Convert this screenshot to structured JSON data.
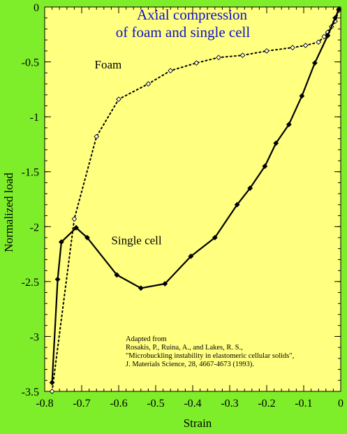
{
  "colors": {
    "page_background": "#7fee2a",
    "plot_background": "#ffff80",
    "title_color": "#1010c8",
    "series_color": "#000000"
  },
  "chart_data": {
    "type": "line",
    "title_lines": [
      "Axial compression",
      "of foam and single cell"
    ],
    "xlabel": "Strain",
    "ylabel": "Normalized load",
    "xlim": [
      -0.8,
      0
    ],
    "ylim": [
      -3.5,
      0
    ],
    "x_ticks": [
      "-0.8",
      "-0.7",
      "-0.6",
      "-0.5",
      "-0.4",
      "-0.3",
      "-0.2",
      "-0.1",
      "0"
    ],
    "y_ticks": [
      "0",
      "-0.5",
      "-1",
      "-1.5",
      "-2",
      "-2.5",
      "-3",
      "-3.5"
    ],
    "grid": false,
    "series": [
      {
        "name": "Foam",
        "style": "dotted",
        "marker": "open-diamond",
        "points": [
          [
            -0.78,
            -3.5
          ],
          [
            -0.72,
            -1.93
          ],
          [
            -0.66,
            -1.18
          ],
          [
            -0.6,
            -0.84
          ],
          [
            -0.52,
            -0.7
          ],
          [
            -0.46,
            -0.58
          ],
          [
            -0.39,
            -0.51
          ],
          [
            -0.33,
            -0.46
          ],
          [
            -0.265,
            -0.44
          ],
          [
            -0.2,
            -0.4
          ],
          [
            -0.13,
            -0.37
          ],
          [
            -0.095,
            -0.35
          ],
          [
            -0.06,
            -0.32
          ],
          [
            -0.045,
            -0.27
          ],
          [
            -0.035,
            -0.23
          ],
          [
            -0.025,
            -0.18
          ],
          [
            -0.015,
            -0.13
          ],
          [
            -0.005,
            -0.03
          ]
        ]
      },
      {
        "name": "Single cell",
        "style": "solid",
        "marker": "filled-diamond",
        "points": [
          [
            -0.78,
            -3.42
          ],
          [
            -0.765,
            -2.48
          ],
          [
            -0.755,
            -2.14
          ],
          [
            -0.715,
            -2.01
          ],
          [
            -0.685,
            -2.1
          ],
          [
            -0.605,
            -2.44
          ],
          [
            -0.54,
            -2.56
          ],
          [
            -0.475,
            -2.52
          ],
          [
            -0.405,
            -2.27
          ],
          [
            -0.34,
            -2.1
          ],
          [
            -0.28,
            -1.8
          ],
          [
            -0.245,
            -1.65
          ],
          [
            -0.205,
            -1.45
          ],
          [
            -0.175,
            -1.24
          ],
          [
            -0.14,
            -1.07
          ],
          [
            -0.105,
            -0.81
          ],
          [
            -0.07,
            -0.51
          ],
          [
            -0.035,
            -0.26
          ],
          [
            -0.015,
            -0.1
          ],
          [
            -0.005,
            -0.02
          ]
        ]
      }
    ],
    "annotations": [
      {
        "text": "Foam",
        "x": -0.665,
        "y": -0.56
      },
      {
        "text": "Single cell",
        "x": -0.62,
        "y": -2.16
      }
    ],
    "credit_lines": [
      "Adapted from",
      "Rosakis, P., Ruina, A., and Lakes, R. S.,",
      "\"Microbuckling instability in elastomeric cellular solids\",",
      "J. Materials Science, 28, 4667-4673 (1993)."
    ]
  }
}
